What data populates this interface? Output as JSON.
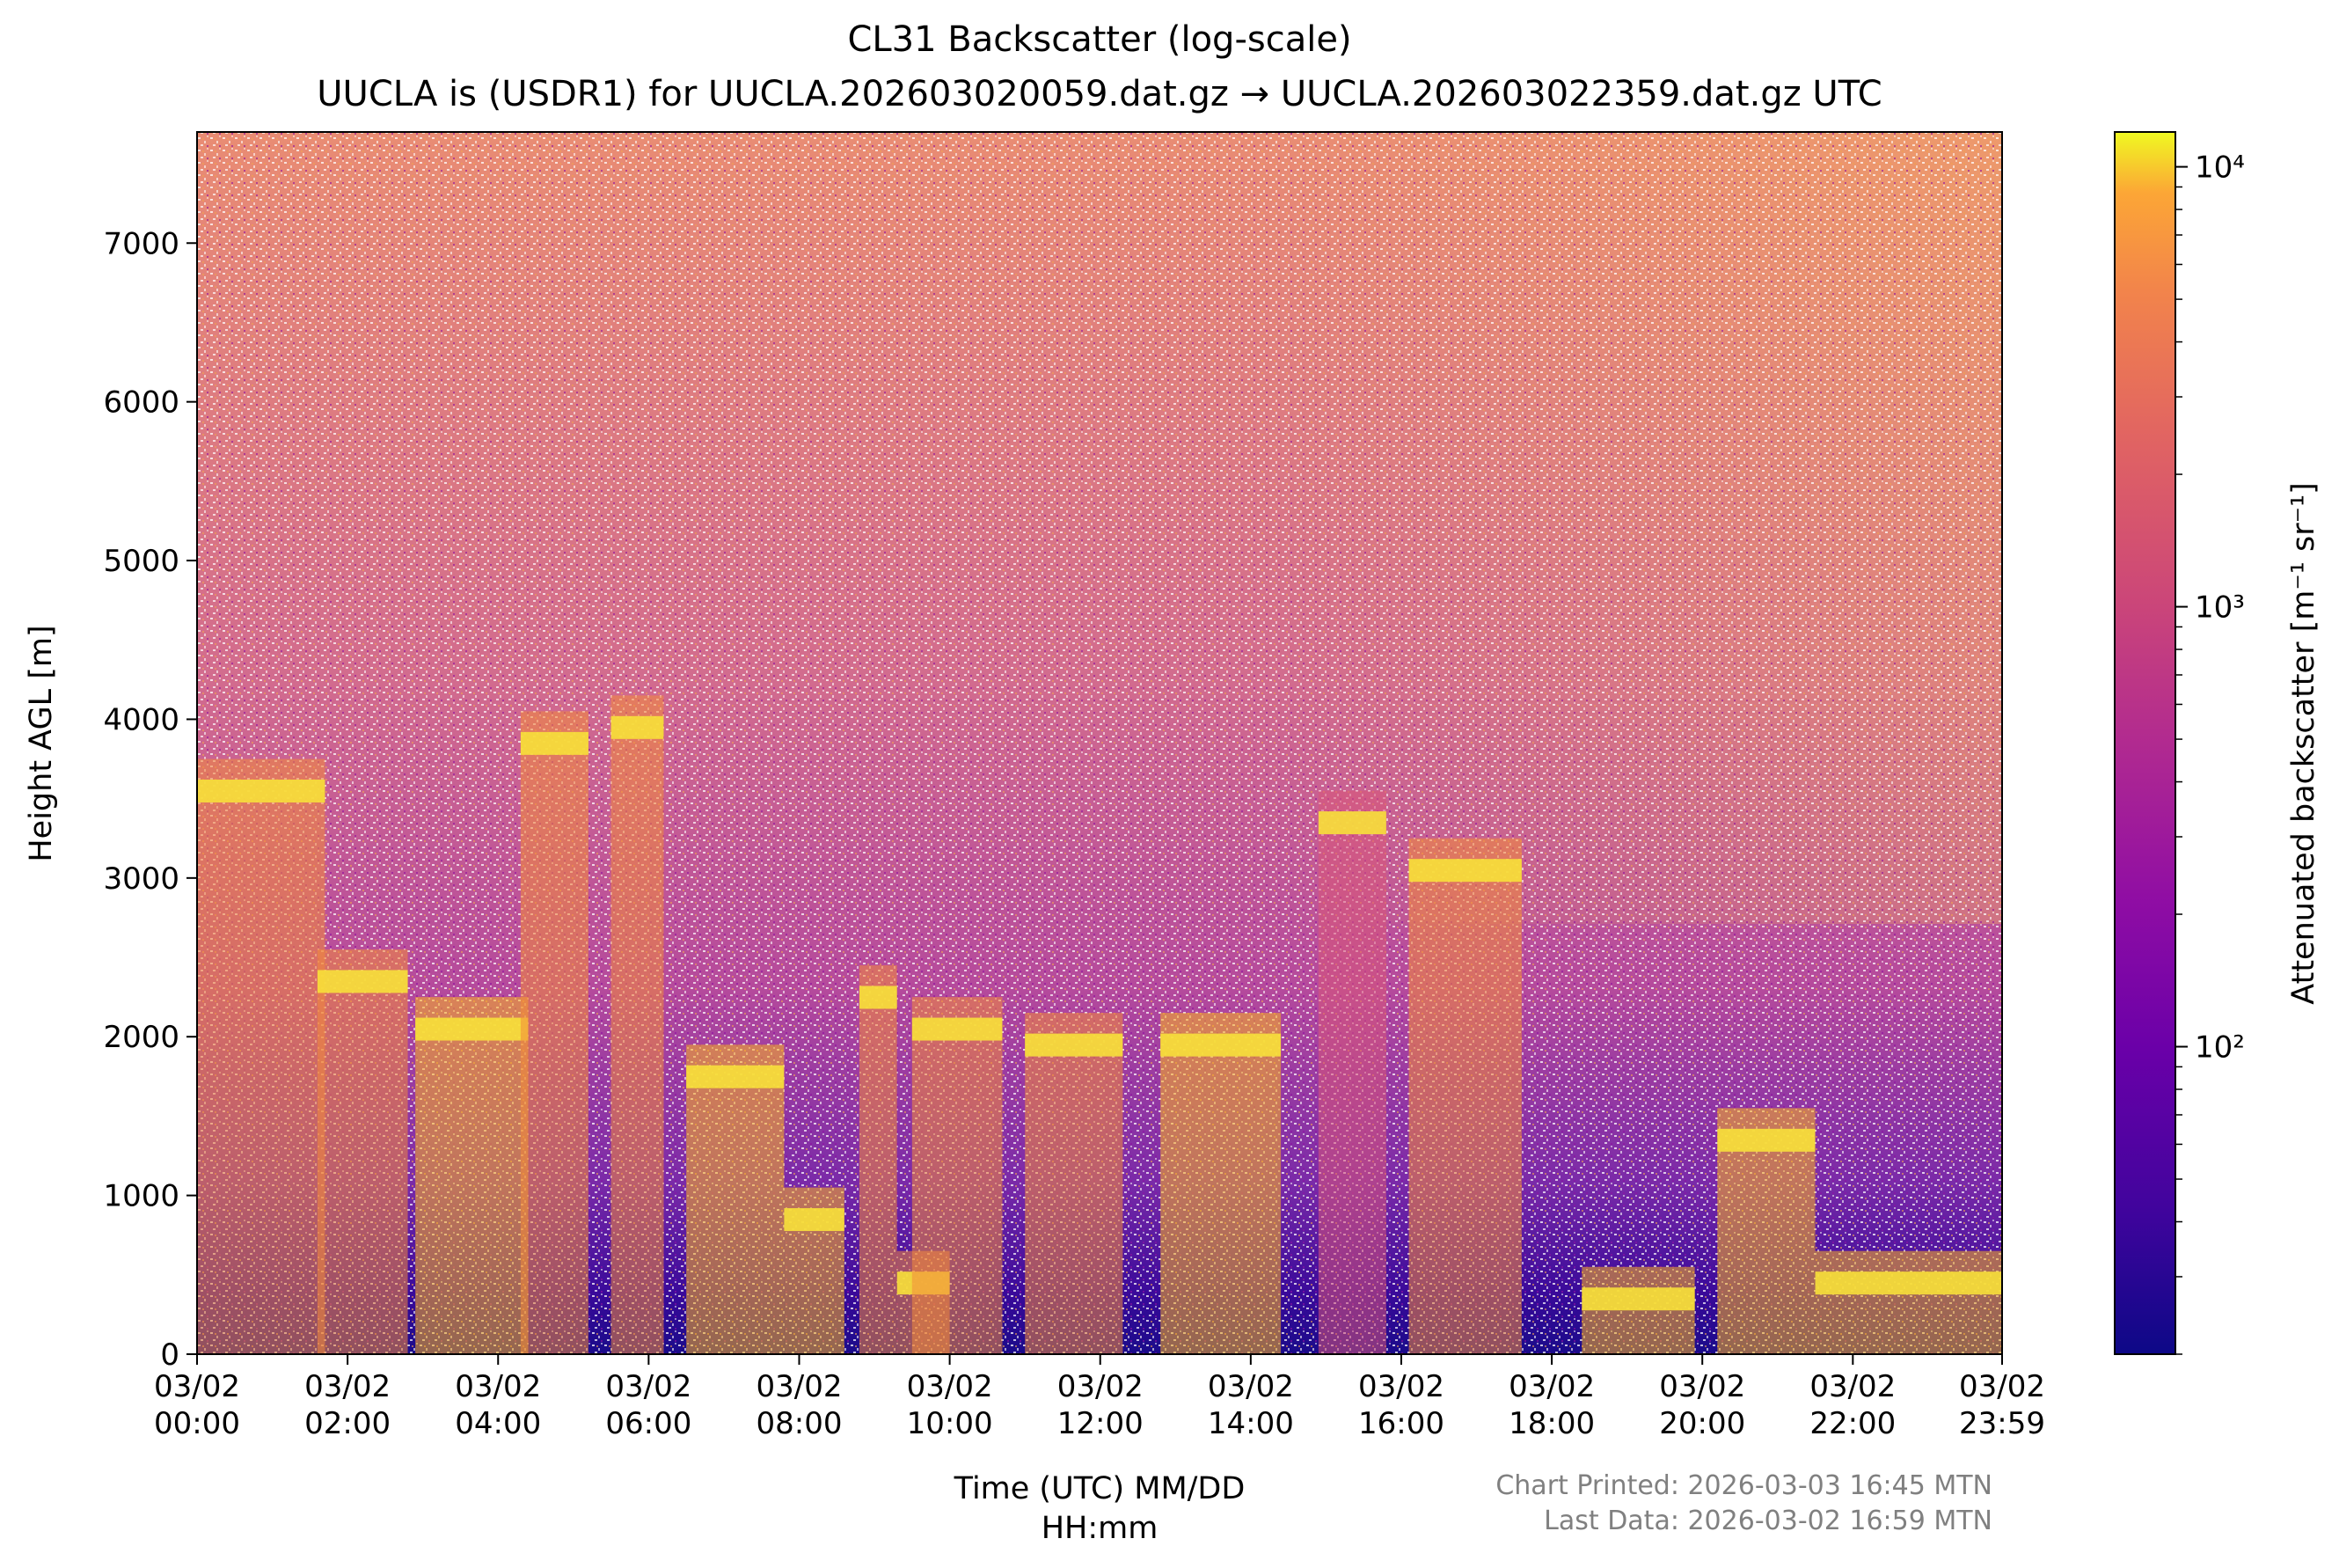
{
  "chart_data": {
    "type": "heatmap",
    "title": "CL31 Backscatter (log-scale)",
    "subtitle": "UUCLA is (USDR1) for UUCLA.202603020059.dat.gz → UUCLA.202603022359.dat.gz UTC",
    "xlabel_line1": "Time (UTC) MM/DD",
    "xlabel_line2": "HH:mm",
    "ylabel": "Height AGL [m]",
    "x_range_hours": [
      0,
      23.983
    ],
    "ylim": [
      0,
      7700
    ],
    "x_ticks": [
      {
        "hours": 0,
        "date": "03/02",
        "time": "00:00"
      },
      {
        "hours": 2,
        "date": "03/02",
        "time": "02:00"
      },
      {
        "hours": 4,
        "date": "03/02",
        "time": "04:00"
      },
      {
        "hours": 6,
        "date": "03/02",
        "time": "06:00"
      },
      {
        "hours": 8,
        "date": "03/02",
        "time": "08:00"
      },
      {
        "hours": 10,
        "date": "03/02",
        "time": "10:00"
      },
      {
        "hours": 12,
        "date": "03/02",
        "time": "12:00"
      },
      {
        "hours": 14,
        "date": "03/02",
        "time": "14:00"
      },
      {
        "hours": 16,
        "date": "03/02",
        "time": "16:00"
      },
      {
        "hours": 18,
        "date": "03/02",
        "time": "18:00"
      },
      {
        "hours": 20,
        "date": "03/02",
        "time": "20:00"
      },
      {
        "hours": 22,
        "date": "03/02",
        "time": "22:00"
      },
      {
        "hours": 23.983,
        "date": "03/02",
        "time": "23:59"
      }
    ],
    "y_ticks": [
      0,
      1000,
      2000,
      3000,
      4000,
      5000,
      6000,
      7000
    ],
    "colorbar": {
      "label": "Attenuated backscatter [m⁻¹ sr⁻¹]",
      "scale": "log",
      "range": [
        20,
        12000
      ],
      "colormap": "plasma",
      "ticks": [
        {
          "value": 100,
          "label": "10²"
        },
        {
          "value": 1000,
          "label": "10³"
        },
        {
          "value": 10000,
          "label": "10⁴"
        }
      ]
    },
    "cloud_features": [
      {
        "hours_start": 0.0,
        "hours_end": 1.7,
        "height_m": 3500,
        "intensity": "high"
      },
      {
        "hours_start": 1.6,
        "hours_end": 2.8,
        "height_m": 2300,
        "intensity": "high"
      },
      {
        "hours_start": 2.9,
        "hours_end": 4.4,
        "height_m": 2000,
        "intensity": "very high"
      },
      {
        "hours_start": 4.3,
        "hours_end": 5.2,
        "height_m": 3800,
        "intensity": "high"
      },
      {
        "hours_start": 5.5,
        "hours_end": 6.2,
        "height_m": 3900,
        "intensity": "high"
      },
      {
        "hours_start": 6.5,
        "hours_end": 7.8,
        "height_m": 1700,
        "intensity": "very high"
      },
      {
        "hours_start": 7.8,
        "hours_end": 8.6,
        "height_m": 800,
        "intensity": "very high"
      },
      {
        "hours_start": 8.8,
        "hours_end": 9.3,
        "height_m": 2200,
        "intensity": "high"
      },
      {
        "hours_start": 9.3,
        "hours_end": 10.0,
        "height_m": 400,
        "intensity": "high"
      },
      {
        "hours_start": 9.5,
        "hours_end": 10.7,
        "height_m": 2000,
        "intensity": "high"
      },
      {
        "hours_start": 11.0,
        "hours_end": 12.3,
        "height_m": 1900,
        "intensity": "high"
      },
      {
        "hours_start": 12.8,
        "hours_end": 14.4,
        "height_m": 1900,
        "intensity": "very high"
      },
      {
        "hours_start": 14.9,
        "hours_end": 15.8,
        "height_m": 3300,
        "intensity": "medium"
      },
      {
        "hours_start": 16.1,
        "hours_end": 17.6,
        "height_m": 3000,
        "intensity": "high"
      },
      {
        "hours_start": 18.4,
        "hours_end": 19.9,
        "height_m": 300,
        "intensity": "very high"
      },
      {
        "hours_start": 20.2,
        "hours_end": 21.5,
        "height_m": 1300,
        "intensity": "very high"
      },
      {
        "hours_start": 21.5,
        "hours_end": 23.98,
        "height_m": 400,
        "intensity": "very high"
      }
    ]
  },
  "footer": {
    "printed": "Chart Printed: 2026-03-03 16:45 MTN",
    "last_data": "Last Data: 2026-03-02 16:59 MTN"
  },
  "colors": {
    "background": "#ffffff",
    "noise_low": "#1a0b8a",
    "noise_high": "#f2a14f",
    "cloud": "#f7c72c",
    "footer_text": "#808080"
  }
}
